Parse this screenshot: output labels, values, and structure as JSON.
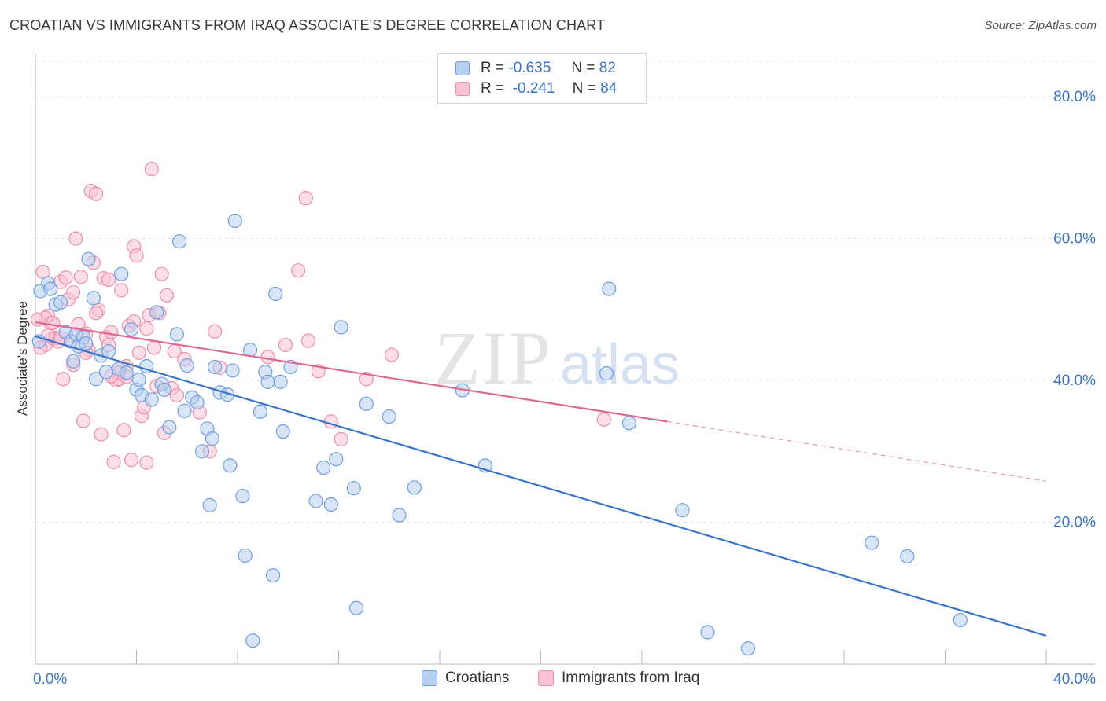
{
  "title": "CROATIAN VS IMMIGRANTS FROM IRAQ ASSOCIATE'S DEGREE CORRELATION CHART",
  "source": "Source: ZipAtlas.com",
  "watermark": {
    "zip": "ZIP",
    "atlas": "atlas"
  },
  "legend": {
    "r_label": "R =",
    "n_label": "N =",
    "rows": [
      {
        "r": "-0.635",
        "n": "82",
        "fill": "#b7d0f0",
        "stroke": "#6f9fe0"
      },
      {
        "r": "-0.241",
        "n": "84",
        "fill": "#f9c3d3",
        "stroke": "#ec8fab"
      }
    ]
  },
  "bottom_legend": [
    "Croatians",
    "Immigrants from Iraq"
  ],
  "chart_data": {
    "type": "scatter",
    "ylabel": "Associate's Degree",
    "xlim": [
      0,
      40
    ],
    "ylim": [
      0,
      85
    ],
    "x_tick_labels": [
      {
        "value": 0,
        "label": "0.0%"
      },
      {
        "value": 40,
        "label": "40.0%"
      }
    ],
    "y_tick_labels": [
      {
        "value": 20,
        "label": "20.0%"
      },
      {
        "value": 40,
        "label": "40.0%"
      },
      {
        "value": 60,
        "label": "60.0%"
      },
      {
        "value": 80,
        "label": "80.0%"
      }
    ],
    "colors": {
      "blue_fill": "#b7d0f0",
      "blue_stroke": "#6f9fe0",
      "blue_line": "#3a74c9",
      "pink_fill": "#f9c3d3",
      "pink_stroke": "#ec8fab",
      "pink_line": "#e0678f",
      "tick_label": "#3a74c9",
      "grid": "#e2e2e2"
    },
    "series": [
      {
        "name": "Croatians",
        "trend": {
          "x0": 0,
          "y0": 46.2,
          "x1": 40,
          "y1": 4.0
        },
        "points": [
          [
            0.2,
            52.6
          ],
          [
            0.5,
            53.7
          ],
          [
            0.6,
            52.9
          ],
          [
            0.8,
            50.7
          ],
          [
            1.0,
            51.0
          ],
          [
            1.2,
            46.8
          ],
          [
            1.4,
            45.5
          ],
          [
            1.5,
            42.7
          ],
          [
            1.6,
            46.5
          ],
          [
            1.7,
            44.8
          ],
          [
            2.1,
            57.1
          ],
          [
            2.3,
            51.6
          ],
          [
            2.4,
            40.2
          ],
          [
            2.6,
            43.5
          ],
          [
            2.8,
            41.2
          ],
          [
            2.9,
            44.1
          ],
          [
            3.3,
            41.6
          ],
          [
            3.4,
            55.0
          ],
          [
            3.6,
            41.1
          ],
          [
            3.8,
            47.2
          ],
          [
            4.0,
            38.7
          ],
          [
            4.1,
            40.1
          ],
          [
            4.2,
            37.9
          ],
          [
            4.4,
            42.0
          ],
          [
            4.6,
            37.3
          ],
          [
            4.8,
            49.6
          ],
          [
            5.0,
            39.5
          ],
          [
            5.1,
            38.7
          ],
          [
            5.3,
            33.4
          ],
          [
            5.6,
            46.5
          ],
          [
            5.7,
            59.6
          ],
          [
            5.9,
            35.7
          ],
          [
            6.0,
            42.1
          ],
          [
            6.2,
            37.6
          ],
          [
            6.4,
            36.9
          ],
          [
            6.6,
            30.0
          ],
          [
            6.8,
            33.2
          ],
          [
            6.9,
            22.4
          ],
          [
            7.0,
            31.8
          ],
          [
            7.1,
            41.9
          ],
          [
            7.3,
            38.3
          ],
          [
            7.6,
            38.0
          ],
          [
            7.7,
            28.0
          ],
          [
            7.8,
            41.4
          ],
          [
            7.9,
            62.5
          ],
          [
            8.2,
            23.7
          ],
          [
            8.3,
            15.3
          ],
          [
            8.5,
            44.3
          ],
          [
            8.6,
            3.3
          ],
          [
            8.9,
            35.6
          ],
          [
            9.1,
            41.2
          ],
          [
            9.2,
            39.8
          ],
          [
            9.4,
            12.5
          ],
          [
            9.5,
            52.2
          ],
          [
            9.7,
            39.8
          ],
          [
            9.8,
            32.8
          ],
          [
            10.1,
            41.9
          ],
          [
            11.1,
            23.0
          ],
          [
            11.4,
            27.7
          ],
          [
            11.7,
            22.5
          ],
          [
            11.9,
            28.9
          ],
          [
            12.1,
            47.5
          ],
          [
            12.6,
            24.8
          ],
          [
            12.7,
            7.9
          ],
          [
            13.1,
            36.7
          ],
          [
            14.0,
            34.9
          ],
          [
            14.4,
            21.0
          ],
          [
            15.0,
            24.9
          ],
          [
            16.9,
            38.6
          ],
          [
            17.8,
            28.0
          ],
          [
            22.7,
            52.9
          ],
          [
            22.6,
            41.0
          ],
          [
            23.5,
            34.0
          ],
          [
            25.6,
            21.7
          ],
          [
            26.6,
            4.5
          ],
          [
            28.2,
            2.2
          ],
          [
            33.1,
            17.1
          ],
          [
            34.5,
            15.2
          ],
          [
            36.6,
            6.2
          ],
          [
            0.15,
            45.5
          ],
          [
            1.9,
            46.1
          ],
          [
            2.0,
            45.2
          ]
        ]
      },
      {
        "name": "Immigrants from Iraq",
        "trend": {
          "x0": 0,
          "y0": 48.2,
          "x1": 25.0,
          "y1": 34.2,
          "dash_x1": 40,
          "dash_y1": 25.8
        },
        "points": [
          [
            0.1,
            48.6
          ],
          [
            0.3,
            55.3
          ],
          [
            0.4,
            45.0
          ],
          [
            0.5,
            49.1
          ],
          [
            0.6,
            48.1
          ],
          [
            0.7,
            45.9
          ],
          [
            0.8,
            46.0
          ],
          [
            0.9,
            45.5
          ],
          [
            1.0,
            53.9
          ],
          [
            1.1,
            40.2
          ],
          [
            1.2,
            54.5
          ],
          [
            1.3,
            51.4
          ],
          [
            1.4,
            45.6
          ],
          [
            1.5,
            52.4
          ],
          [
            1.6,
            60.0
          ],
          [
            1.7,
            47.9
          ],
          [
            1.8,
            54.6
          ],
          [
            1.9,
            34.3
          ],
          [
            2.0,
            46.6
          ],
          [
            2.1,
            44.3
          ],
          [
            2.2,
            66.7
          ],
          [
            2.3,
            56.6
          ],
          [
            2.4,
            66.3
          ],
          [
            2.5,
            49.9
          ],
          [
            2.6,
            32.4
          ],
          [
            2.7,
            54.4
          ],
          [
            2.8,
            46.1
          ],
          [
            2.9,
            54.2
          ],
          [
            3.0,
            46.8
          ],
          [
            3.1,
            28.5
          ],
          [
            3.2,
            40.0
          ],
          [
            3.3,
            40.2
          ],
          [
            3.4,
            52.7
          ],
          [
            3.5,
            33.0
          ],
          [
            3.6,
            42.0
          ],
          [
            3.7,
            47.7
          ],
          [
            3.8,
            28.8
          ],
          [
            3.9,
            58.9
          ],
          [
            4.0,
            57.6
          ],
          [
            4.1,
            43.9
          ],
          [
            4.2,
            35.0
          ],
          [
            4.3,
            36.2
          ],
          [
            4.4,
            28.4
          ],
          [
            4.5,
            49.2
          ],
          [
            4.6,
            69.8
          ],
          [
            4.7,
            44.6
          ],
          [
            4.8,
            39.2
          ],
          [
            5.0,
            55.0
          ],
          [
            5.1,
            32.6
          ],
          [
            5.2,
            52.0
          ],
          [
            5.4,
            38.9
          ],
          [
            5.5,
            44.1
          ],
          [
            5.6,
            37.9
          ],
          [
            5.9,
            43.0
          ],
          [
            6.5,
            35.5
          ],
          [
            6.9,
            30.0
          ],
          [
            7.1,
            46.9
          ],
          [
            7.3,
            41.8
          ],
          [
            9.2,
            43.3
          ],
          [
            9.9,
            45.0
          ],
          [
            10.4,
            55.5
          ],
          [
            10.7,
            65.7
          ],
          [
            10.8,
            45.6
          ],
          [
            11.2,
            41.3
          ],
          [
            11.7,
            34.2
          ],
          [
            12.1,
            31.7
          ],
          [
            13.1,
            40.2
          ],
          [
            14.1,
            43.6
          ],
          [
            22.5,
            34.5
          ],
          [
            0.2,
            44.6
          ],
          [
            0.4,
            48.8
          ],
          [
            0.5,
            46.3
          ],
          [
            0.7,
            48.1
          ],
          [
            1.0,
            46.0
          ],
          [
            1.5,
            42.2
          ],
          [
            2.0,
            43.9
          ],
          [
            2.4,
            49.5
          ],
          [
            2.9,
            45.0
          ],
          [
            3.3,
            41.1
          ],
          [
            3.6,
            40.5
          ],
          [
            3.9,
            48.3
          ],
          [
            4.4,
            47.3
          ],
          [
            4.9,
            49.5
          ],
          [
            3.0,
            40.6
          ]
        ]
      }
    ]
  }
}
